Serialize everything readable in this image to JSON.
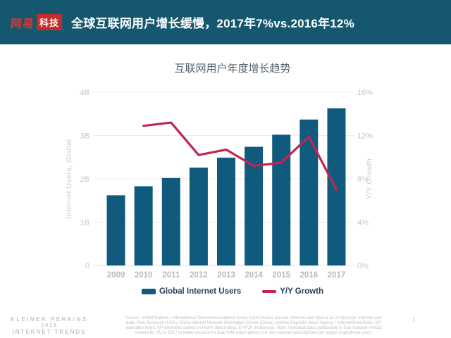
{
  "header": {
    "logo_brand": "网易",
    "logo_sub": "科技",
    "title": "全球互联网用户增长缓慢，2017年7%vs.2016年12%"
  },
  "chart_data": {
    "type": "bar",
    "title": "互联网用户年度增长趋势",
    "categories": [
      "2009",
      "2010",
      "2011",
      "2012",
      "2013",
      "2014",
      "2015",
      "2016",
      "2017"
    ],
    "series": [
      {
        "name": "Global Internet Users",
        "type": "bar",
        "axis": "left",
        "unit": "B",
        "values": [
          1.62,
          1.83,
          2.02,
          2.26,
          2.49,
          2.74,
          3.02,
          3.37,
          3.63
        ]
      },
      {
        "name": "Y/Y Growth",
        "type": "line",
        "axis": "right",
        "unit": "%",
        "values": [
          null,
          12.9,
          13.2,
          10.2,
          10.7,
          9.2,
          9.5,
          11.9,
          7.0
        ]
      }
    ],
    "left_axis": {
      "label": "Internet Users, Global",
      "min": 0,
      "max": 4,
      "ticks": [
        "0",
        "1B",
        "2B",
        "3B",
        "4B"
      ]
    },
    "right_axis": {
      "label": "Y/Y Growth",
      "min": 0,
      "max": 16,
      "ticks": [
        "0%",
        "4%",
        "8%",
        "12%",
        "16%"
      ]
    },
    "grid": true,
    "legend_position": "bottom"
  },
  "legend": {
    "bar_label": "Global Internet Users",
    "line_label": "Y/Y Growth"
  },
  "footer": {
    "brand_line1": "KLEINER PERKINS",
    "brand_line2": "2018",
    "brand_line3": "INTERNET TRENDS",
    "source_lines": [
      "Source: United Nations / International Telecommunications Union, USA Census Bureau. Internet user data is as of mid-year. Internet user",
      "data: Pew Research (USA), China Internet Network Information Center (China), Islamic Republic News Agency / InternetWorldStats / KP",
      "estimates (Iran). KP estimates based on IAMAI data (India), & APJII (Indonesia). Note: Historical data (particularly in Sub-Saharan Africa)",
      "revised by ITU in 2017 to better account for dual-SIM subscriptions (i.e. two Internet subscriptions per single smartphone user)."
    ],
    "page_number": "7"
  },
  "colors": {
    "header_bg": "#15576F",
    "bar": "#0F5A7D",
    "line": "#C22453",
    "grid": "#E9EBEE",
    "baseline": "#DADDE1",
    "tick_text": "#C2C7CC",
    "year_text": "#B4BAC0",
    "axis_title": "#C5CACF",
    "legend_text": "#26425A"
  }
}
